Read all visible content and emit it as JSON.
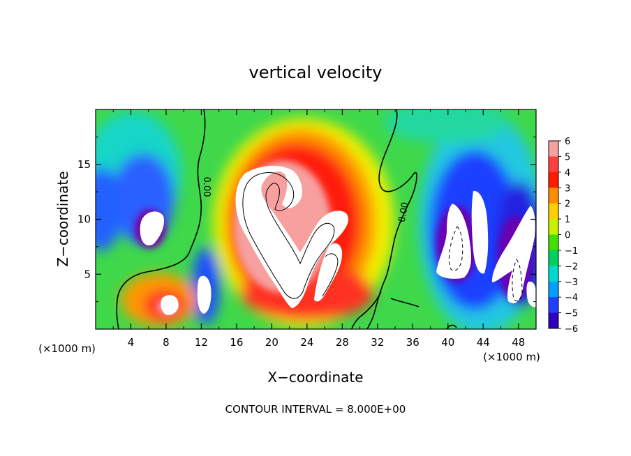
{
  "chart_data": {
    "type": "heatmap",
    "title": "vertical velocity",
    "xlabel": "X−coordinate",
    "ylabel": "Z−coordinate",
    "x_unit_left": "(×1000 m)",
    "x_unit_right": "(×1000 m)",
    "footer": "CONTOUR INTERVAL = 8.000E+00",
    "xlim": [
      0,
      50
    ],
    "ylim": [
      0,
      20
    ],
    "xticks": [
      4,
      8,
      12,
      16,
      20,
      24,
      28,
      32,
      36,
      40,
      44,
      48
    ],
    "xtick_labels": [
      "4",
      "8",
      "12",
      "16",
      "20",
      "24",
      "28",
      "32",
      "36",
      "40",
      "44",
      "48"
    ],
    "yticks": [
      5,
      10,
      15
    ],
    "ytick_labels": [
      "5",
      "10",
      "15"
    ],
    "colorbar": {
      "levels": [
        6,
        5,
        4,
        3,
        2,
        1,
        0,
        -1,
        -2,
        -3,
        -4,
        -5,
        -6
      ],
      "labels": [
        "6",
        "5",
        "4",
        "3",
        "2",
        "1",
        "0",
        "−1",
        "−2",
        "−3",
        "−4",
        "−5",
        "−6"
      ],
      "colors": [
        "#f6a0a0",
        "#ff4040",
        "#ff1a00",
        "#ff8c00",
        "#ffd000",
        "#c8f000",
        "#40e000",
        "#00d060",
        "#00d8d0",
        "#00a0ff",
        "#2040ff",
        "#3000c0",
        "#7a00a0"
      ]
    },
    "contour_labels": [
      "0.00",
      "0.00"
    ],
    "features": [
      {
        "name": "updraft core",
        "x": 22,
        "z": 10,
        "value": 6
      },
      {
        "name": "updraft lobe",
        "x": 28,
        "z": 7,
        "value": 6
      },
      {
        "name": "low-level updraft",
        "x": 9,
        "z": 2,
        "value": 6
      },
      {
        "name": "downdraft left",
        "x": 5,
        "z": 10,
        "value": -6
      },
      {
        "name": "downdraft right",
        "x": 42,
        "z": 8,
        "value": -6
      },
      {
        "name": "downdraft far right",
        "x": 47,
        "z": 7,
        "value": -6
      }
    ]
  }
}
